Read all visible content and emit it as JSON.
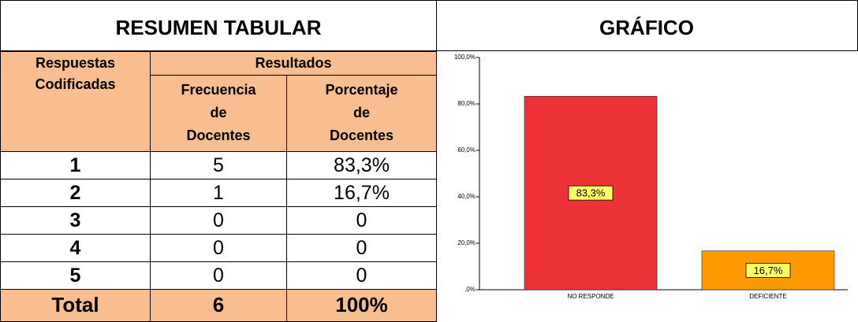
{
  "header": {
    "left": "RESUMEN TABULAR",
    "right": "GRÁFICO"
  },
  "table": {
    "header": {
      "codes": [
        "Respuestas",
        "Codificadas"
      ],
      "group": "Resultados",
      "frequency": [
        "Frecuencia",
        "de",
        "Docentes"
      ],
      "percent": [
        "Porcentaje",
        "de",
        "Docentes"
      ]
    },
    "rows": [
      [
        "1",
        "5",
        "83,3%"
      ],
      [
        "2",
        "1",
        "16,7%"
      ],
      [
        "3",
        "0",
        "0"
      ],
      [
        "4",
        "0",
        "0"
      ],
      [
        "5",
        "0",
        "0"
      ]
    ],
    "total": [
      "Total",
      "6",
      "100%"
    ]
  },
  "chart_data": {
    "type": "bar",
    "categories": [
      "NO RESPONDE",
      "DEFICIENTE"
    ],
    "values": [
      83.3,
      16.7
    ],
    "value_labels": [
      "83,3%",
      "16,7%"
    ],
    "colors": [
      "#ee3338",
      "#ff9900"
    ],
    "ylim": [
      0,
      100
    ],
    "yticks": [
      {
        "value": 0,
        "label": ",0%"
      },
      {
        "value": 20,
        "label": "20,0%"
      },
      {
        "value": 40,
        "label": "40,0%"
      },
      {
        "value": 60,
        "label": "60,0%"
      },
      {
        "value": 80,
        "label": "80,0%"
      },
      {
        "value": 100,
        "label": "100,0%"
      }
    ]
  }
}
